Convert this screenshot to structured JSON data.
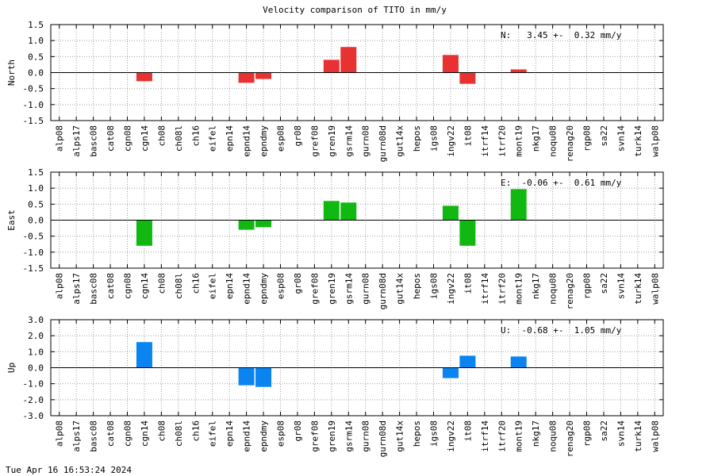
{
  "timestamp": "Tue Apr 16 16:53:24 2024",
  "chart_data": {
    "type": "bar",
    "title": "Velocity comparison of TITO in mm/y",
    "categories": [
      "alp08",
      "alps17",
      "basc08",
      "cat08",
      "cgn08",
      "cgn14",
      "ch08",
      "ch08l",
      "ch16",
      "eifel",
      "epn14",
      "epnd14",
      "epndmy",
      "esp08",
      "gr08",
      "gref08",
      "gren19",
      "gsrm14",
      "gurn08",
      "gurn08d",
      "gut14x",
      "hepos",
      "igs08",
      "ingv22",
      "it08",
      "itrf14",
      "itrf20",
      "mont19",
      "nkg17",
      "noqu08",
      "renag20",
      "rgp08",
      "sa22",
      "svn14",
      "turk14",
      "walp08"
    ],
    "grid": true,
    "panels": [
      {
        "ylabel": "North",
        "color": "#e83232",
        "ylim": [
          -1.5,
          1.5
        ],
        "ticks": [
          "1.5",
          "1.0",
          "0.5",
          "0.0",
          "-0.5",
          "-1.0",
          "-1.5"
        ],
        "summary": "N:   3.45 +-  0.32 mm/y",
        "values": [
          null,
          null,
          null,
          null,
          null,
          -0.27,
          null,
          null,
          null,
          null,
          null,
          -0.32,
          -0.2,
          null,
          null,
          null,
          0.4,
          0.8,
          null,
          null,
          null,
          null,
          null,
          0.55,
          -0.35,
          null,
          null,
          0.1,
          null,
          null,
          null,
          null,
          null,
          null,
          null,
          null
        ]
      },
      {
        "ylabel": "East",
        "color": "#12b812",
        "ylim": [
          -1.5,
          1.5
        ],
        "ticks": [
          "1.5",
          "1.0",
          "0.5",
          "0.0",
          "-0.5",
          "-1.0",
          "-1.5"
        ],
        "summary": "E:  -0.06 +-  0.61 mm/y",
        "values": [
          null,
          null,
          null,
          null,
          null,
          -0.8,
          null,
          null,
          null,
          null,
          null,
          -0.3,
          -0.22,
          null,
          null,
          null,
          0.6,
          0.55,
          null,
          null,
          null,
          null,
          null,
          0.45,
          -0.8,
          null,
          null,
          0.97,
          null,
          null,
          null,
          null,
          null,
          null,
          null,
          null
        ]
      },
      {
        "ylabel": "Up",
        "color": "#0a84f0",
        "ylim": [
          -3.0,
          3.0
        ],
        "ticks": [
          "3.0",
          "2.0",
          "1.0",
          "0.0",
          "-1.0",
          "-2.0",
          "-3.0"
        ],
        "summary": "U:  -0.68 +-  1.05 mm/y",
        "values": [
          null,
          null,
          null,
          null,
          null,
          1.6,
          null,
          null,
          null,
          null,
          null,
          -1.1,
          -1.2,
          null,
          null,
          null,
          null,
          null,
          null,
          null,
          null,
          null,
          null,
          -0.65,
          0.75,
          null,
          null,
          0.7,
          null,
          null,
          null,
          null,
          null,
          null,
          null,
          null
        ]
      }
    ]
  }
}
